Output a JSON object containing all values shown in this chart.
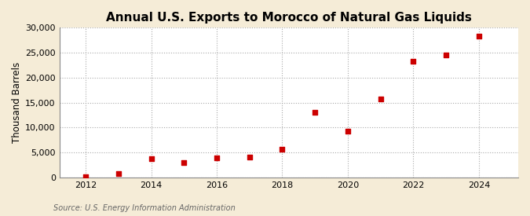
{
  "title": "Annual U.S. Exports to Morocco of Natural Gas Liquids",
  "ylabel": "Thousand Barrels",
  "source": "Source: U.S. Energy Information Administration",
  "figure_bg_color": "#f5ecd7",
  "plot_bg_color": "#ffffff",
  "marker_color": "#cc0000",
  "marker": "s",
  "marker_size": 4,
  "years": [
    2012,
    2013,
    2014,
    2015,
    2016,
    2017,
    2018,
    2019,
    2020,
    2021,
    2022,
    2023,
    2024
  ],
  "values": [
    200,
    700,
    3700,
    3000,
    3900,
    4100,
    5600,
    13000,
    9300,
    15700,
    23300,
    24500,
    28300
  ],
  "xlim": [
    2011.2,
    2025.2
  ],
  "ylim": [
    0,
    30000
  ],
  "yticks": [
    0,
    5000,
    10000,
    15000,
    20000,
    25000,
    30000
  ],
  "xticks": [
    2012,
    2014,
    2016,
    2018,
    2020,
    2022,
    2024
  ],
  "title_fontsize": 11,
  "label_fontsize": 8.5,
  "tick_fontsize": 8,
  "source_fontsize": 7
}
